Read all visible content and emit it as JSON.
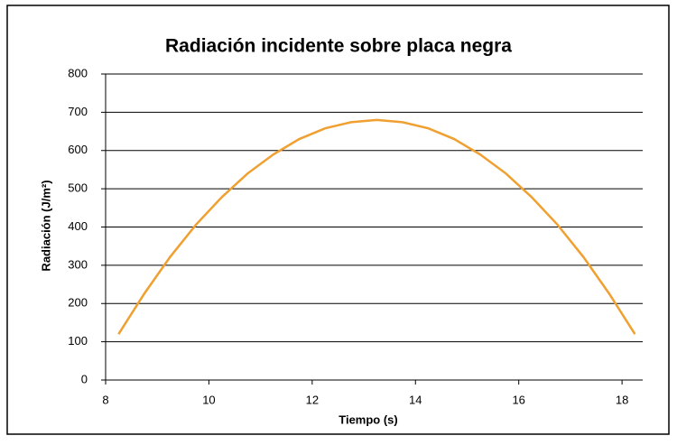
{
  "chart_data": {
    "type": "line",
    "title": "Radiación incidente sobre placa negra",
    "x_label": "Tiempo (s)",
    "y_label": "Radiación (J/m²)",
    "x": [
      8.25,
      8.75,
      9.25,
      9.75,
      10.25,
      10.75,
      11.25,
      11.75,
      12.25,
      12.75,
      13.25,
      13.75,
      14.25,
      14.75,
      15.25,
      15.75,
      16.25,
      16.75,
      17.25,
      17.75,
      18.25
    ],
    "series": [
      {
        "name": "Radiación",
        "color": "#f0a030",
        "values": [
          120,
          226,
          322,
          406,
          478,
          540,
          590,
          630,
          658,
          674,
          680,
          674,
          658,
          630,
          590,
          540,
          478,
          406,
          322,
          226,
          120
        ]
      }
    ],
    "xlim": [
      8,
      18.4
    ],
    "xticks": [
      8,
      10,
      12,
      14,
      16,
      18
    ],
    "ylim": [
      0,
      800
    ],
    "yticks": [
      0,
      100,
      200,
      300,
      400,
      500,
      600,
      700,
      800
    ],
    "grid": true
  }
}
